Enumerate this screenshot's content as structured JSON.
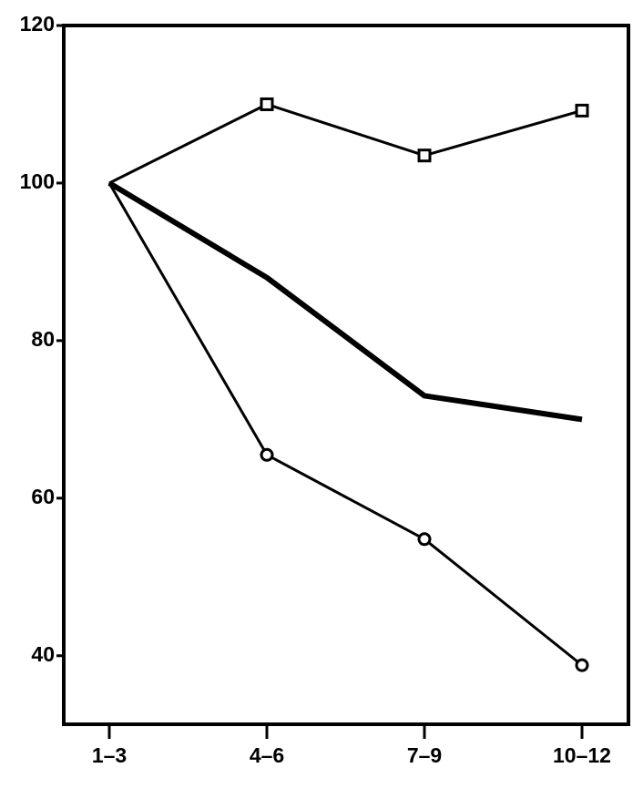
{
  "chart_data": {
    "type": "line",
    "categories": [
      "1–3",
      "4–6",
      "7–9",
      "10–12"
    ],
    "series": [
      {
        "color": "#000000",
        "marker": "square",
        "line_width": 3,
        "values": [
          100,
          110,
          103.5,
          109.2
        ]
      },
      {
        "color": "#000000",
        "marker": "none",
        "line_width": 6,
        "values": [
          100,
          88,
          73,
          70
        ]
      },
      {
        "color": "#000000",
        "marker": "circle",
        "line_width": 3,
        "values": [
          100,
          65.5,
          54.8,
          38.8
        ]
      }
    ],
    "ylim": [
      31.3,
      120
    ],
    "yticks": [
      40,
      60,
      80,
      100,
      120
    ],
    "grid": false
  }
}
